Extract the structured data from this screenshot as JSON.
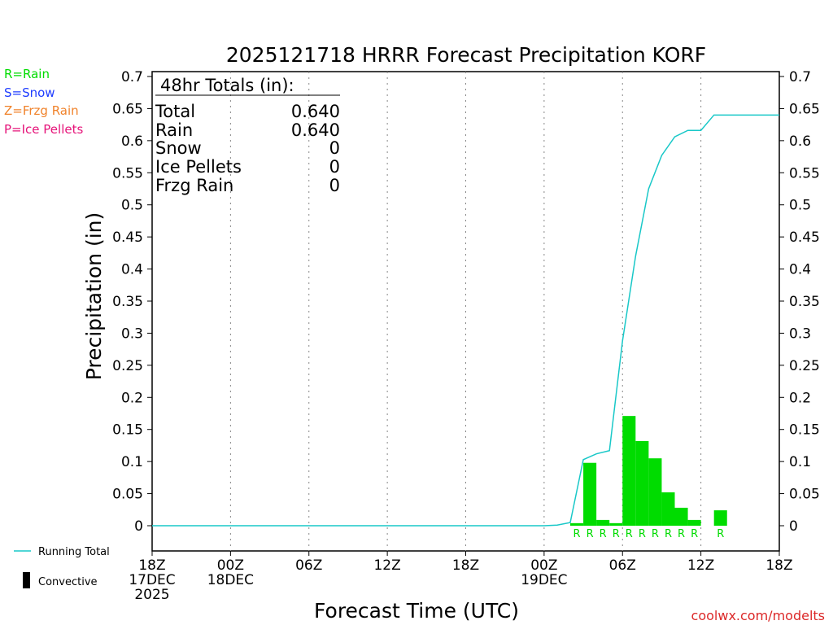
{
  "chart_data": {
    "type": "bar",
    "title": "2025121718 HRRR Forecast Precipitation KORF",
    "ylabel": "Precipitation (in)",
    "xlabel": "Forecast Time (UTC)",
    "ylim": [
      0,
      0.7
    ],
    "xlim_hours": [
      0,
      48
    ],
    "y_ticks": [
      "0",
      "0.05",
      "0.1",
      "0.15",
      "0.2",
      "0.25",
      "0.3",
      "0.35",
      "0.4",
      "0.45",
      "0.5",
      "0.55",
      "0.6",
      "0.65",
      "0.7"
    ],
    "x_ticks": [
      {
        "hour": 0,
        "lines": [
          "18Z",
          "17DEC",
          "2025"
        ]
      },
      {
        "hour": 6,
        "lines": [
          "00Z",
          "18DEC"
        ]
      },
      {
        "hour": 12,
        "lines": [
          "06Z"
        ]
      },
      {
        "hour": 18,
        "lines": [
          "12Z"
        ]
      },
      {
        "hour": 24,
        "lines": [
          "18Z"
        ]
      },
      {
        "hour": 30,
        "lines": [
          "00Z",
          "19DEC"
        ]
      },
      {
        "hour": 36,
        "lines": [
          "06Z"
        ]
      },
      {
        "hour": 42,
        "lines": [
          "12Z"
        ]
      },
      {
        "hour": 48,
        "lines": [
          "18Z"
        ]
      }
    ],
    "grid_hours": [
      6,
      12,
      18,
      24,
      30,
      36,
      42
    ],
    "bars": [
      {
        "hour": 32,
        "value": 0.004,
        "type": "R"
      },
      {
        "hour": 33,
        "value": 0.098,
        "type": "R"
      },
      {
        "hour": 34,
        "value": 0.009,
        "type": "R"
      },
      {
        "hour": 35,
        "value": 0.004,
        "type": "R"
      },
      {
        "hour": 36,
        "value": 0.171,
        "type": "R"
      },
      {
        "hour": 37,
        "value": 0.132,
        "type": "R"
      },
      {
        "hour": 38,
        "value": 0.105,
        "type": "R"
      },
      {
        "hour": 39,
        "value": 0.052,
        "type": "R"
      },
      {
        "hour": 40,
        "value": 0.028,
        "type": "R"
      },
      {
        "hour": 41,
        "value": 0.009,
        "type": "R"
      },
      {
        "hour": 43,
        "value": 0.024,
        "type": "R"
      }
    ],
    "running_total": {
      "hours": [
        0,
        30,
        31,
        32,
        33,
        34,
        35,
        36,
        37,
        38,
        39,
        40,
        41,
        42,
        43,
        44,
        45,
        46,
        47,
        48
      ],
      "values": [
        0,
        0,
        0.001,
        0.005,
        0.103,
        0.112,
        0.117,
        0.288,
        0.42,
        0.525,
        0.577,
        0.606,
        0.616,
        0.616,
        0.64,
        0.64,
        0.64,
        0.64,
        0.64,
        0.64
      ]
    },
    "colors": {
      "rain": "#00dc00",
      "snow": "#1e3cff",
      "frzg_rain": "#f0822a",
      "ice_pellets": "#e6147a",
      "running_total": "#19c8c8",
      "convective": "#000000"
    }
  },
  "totals": {
    "heading": "48hr Totals (in):",
    "rows": [
      {
        "label": "Total",
        "value": "0.640"
      },
      {
        "label": "Rain",
        "value": "0.640"
      },
      {
        "label": "Snow",
        "value": "0"
      },
      {
        "label": "Ice Pellets",
        "value": "0"
      },
      {
        "label": "Frzg Rain",
        "value": "0"
      }
    ]
  },
  "legend": {
    "types": [
      "R=Rain",
      "S=Snow",
      "Z=Frzg Rain",
      "P=Ice Pellets"
    ],
    "running_total": "Running Total",
    "convective": "Convective"
  },
  "credit": "coolwx.com/modelts"
}
